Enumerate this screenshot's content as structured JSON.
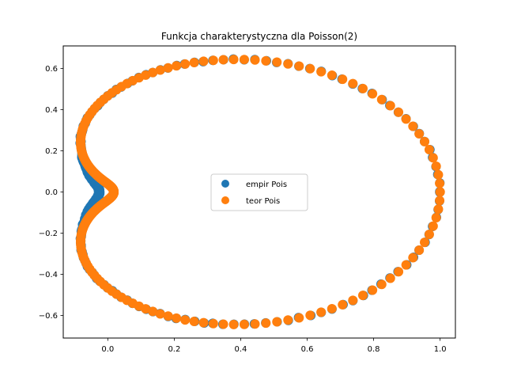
{
  "chart_data": {
    "type": "scatter",
    "title": "Funkcja charakterystyczna dla Poisson(2)",
    "xlabel": "",
    "ylabel": "",
    "xlim": [
      -0.134,
      1.046
    ],
    "ylim": [
      -0.71,
      0.71
    ],
    "xticks": [
      0.0,
      0.2,
      0.4,
      0.6,
      0.8,
      1.0
    ],
    "xtick_labels": [
      "0.0",
      "0.2",
      "0.4",
      "0.6",
      "0.8",
      "1.0"
    ],
    "yticks": [
      -0.6,
      -0.4,
      -0.2,
      0.0,
      0.2,
      0.4,
      0.6
    ],
    "ytick_labels": [
      "−0.6",
      "−0.4",
      "−0.2",
      "0.0",
      "0.2",
      "0.4",
      "0.6"
    ],
    "grid": false,
    "legend_position": "center",
    "parametric_curve": {
      "description_of_shape_only": "points (Re, Im) of exp(lambda*(e^{it}-1)) for t in [0, 2*pi], lambda = 2",
      "lambda": 2,
      "t_min": 0,
      "t_max": 6.283185307,
      "samples": 300
    },
    "series": [
      {
        "name": "empir Pois",
        "color": "#1f77b4",
        "empirical_scale": 1.0,
        "noise": 0.004,
        "seed": 7,
        "x_shift_near_origin": -0.045,
        "y_scale_near_origin": 1.25
      },
      {
        "name": "teor Pois",
        "color": "#ff7f0e",
        "empirical_scale": 1.0,
        "noise": 0.0,
        "seed": 0,
        "x_shift_near_origin": 0.0,
        "y_scale_near_origin": 1.0
      }
    ]
  }
}
